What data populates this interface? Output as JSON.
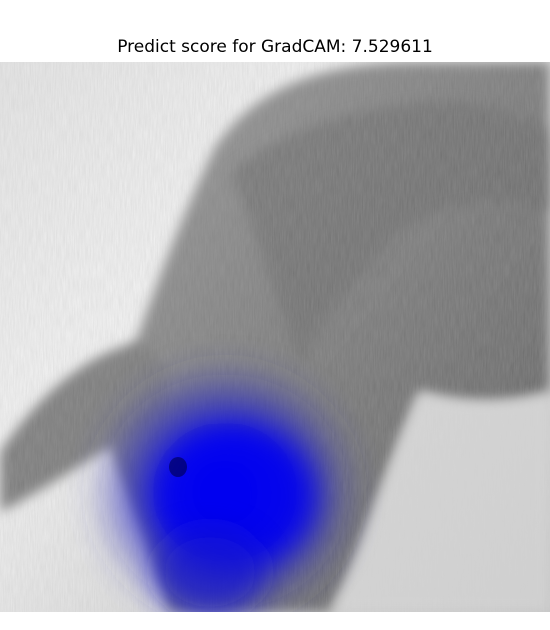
{
  "figure": {
    "title": "Predict score for GradCAM: 7.529611"
  },
  "image": {
    "subject": "grayscale photo of a long-haired dog",
    "overlay": "blue GradCAM heatmap",
    "colors": {
      "background_light": "#f2f2f2",
      "fur_mid": "#8c8c8c",
      "fur_dark": "#4a4a4a",
      "heatmap": "#0000ff"
    }
  }
}
